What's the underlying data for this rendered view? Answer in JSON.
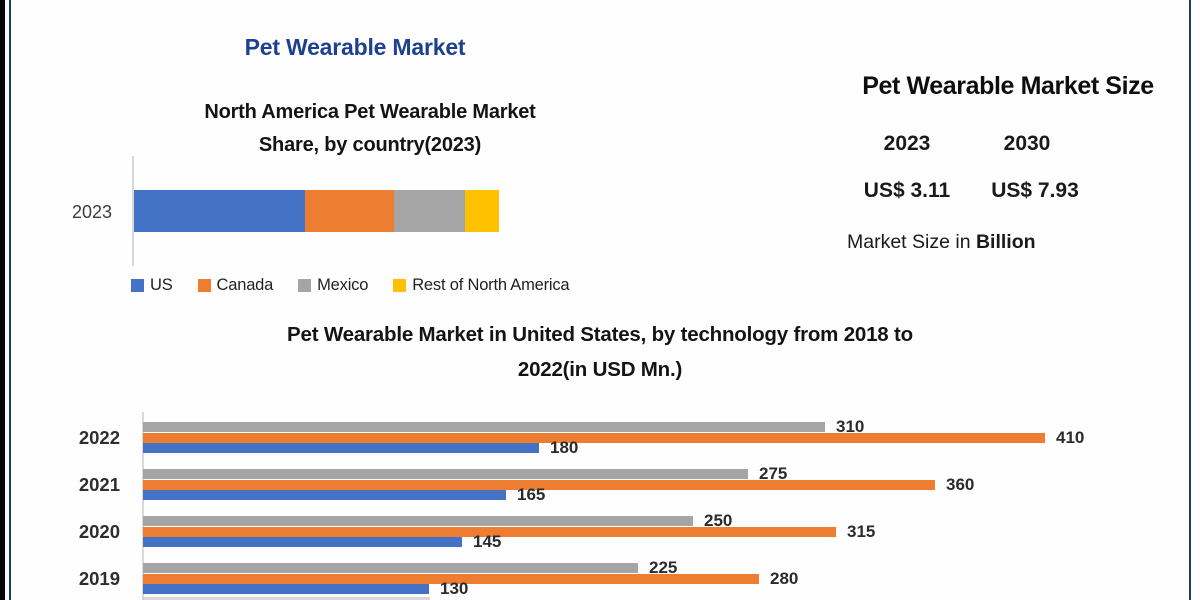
{
  "page_title": "Pet Wearable Market",
  "colors": {
    "title_blue": "#1E418F",
    "frame_navy": "#1D3C5E",
    "axis_gray": "#D9D9D9",
    "us_blue": "#4472C4",
    "canada_orange": "#ED7D31",
    "mexico_gray": "#A5A5A5",
    "rest_yellow": "#FFC000"
  },
  "market_size_panel": {
    "title": "Pet Wearable Market Size",
    "columns": [
      {
        "year": "2023",
        "value": "US$ 3.11"
      },
      {
        "year": "2030",
        "value": "US$  7.93"
      }
    ],
    "note_regular": "Market Size in ",
    "note_bold": "Billion"
  },
  "chart_data": [
    {
      "id": "na-share",
      "type": "bar",
      "variant": "horizontal-stacked",
      "title": "North America Pet Wearable Market Share, by country(2023)",
      "title_lines": [
        "North America Pet Wearable Market",
        "Share, by country(2023)"
      ],
      "categories": [
        "2023"
      ],
      "series": [
        {
          "name": "US",
          "color": "#4472C4",
          "values": [
            46.8
          ]
        },
        {
          "name": "Canada",
          "color": "#ED7D31",
          "values": [
            24.4
          ]
        },
        {
          "name": "Mexico",
          "color": "#A5A5A5",
          "values": [
            19.4
          ]
        },
        {
          "name": "Rest of North America",
          "color": "#FFC000",
          "values": [
            9.4
          ]
        }
      ],
      "values_unit": "share-percent-estimated-from-bar-lengths",
      "legend_position": "bottom",
      "data_labels": false,
      "grid": false
    },
    {
      "id": "us-by-technology",
      "type": "bar",
      "variant": "horizontal-grouped",
      "title": "Pet Wearable Market in United States, by technology from 2018 to 2022(in USD Mn.)",
      "title_lines": [
        "Pet Wearable Market in United States, by technology from 2018 to",
        "2022(in USD Mn.)"
      ],
      "categories": [
        "2022",
        "2021",
        "2020",
        "2019"
      ],
      "series": [
        {
          "name": "gray-series",
          "color": "#A5A5A5",
          "values": [
            310,
            275,
            250,
            225
          ]
        },
        {
          "name": "orange-series",
          "color": "#ED7D31",
          "values": [
            410,
            360,
            315,
            280
          ]
        },
        {
          "name": "blue-series",
          "color": "#4472C4",
          "values": [
            180,
            165,
            145,
            130
          ]
        }
      ],
      "values_unit": "USD Mn.",
      "xlim": [
        0,
        455
      ],
      "data_labels": true,
      "grid": false,
      "note": "2018 group cut off at bottom edge of image"
    }
  ]
}
